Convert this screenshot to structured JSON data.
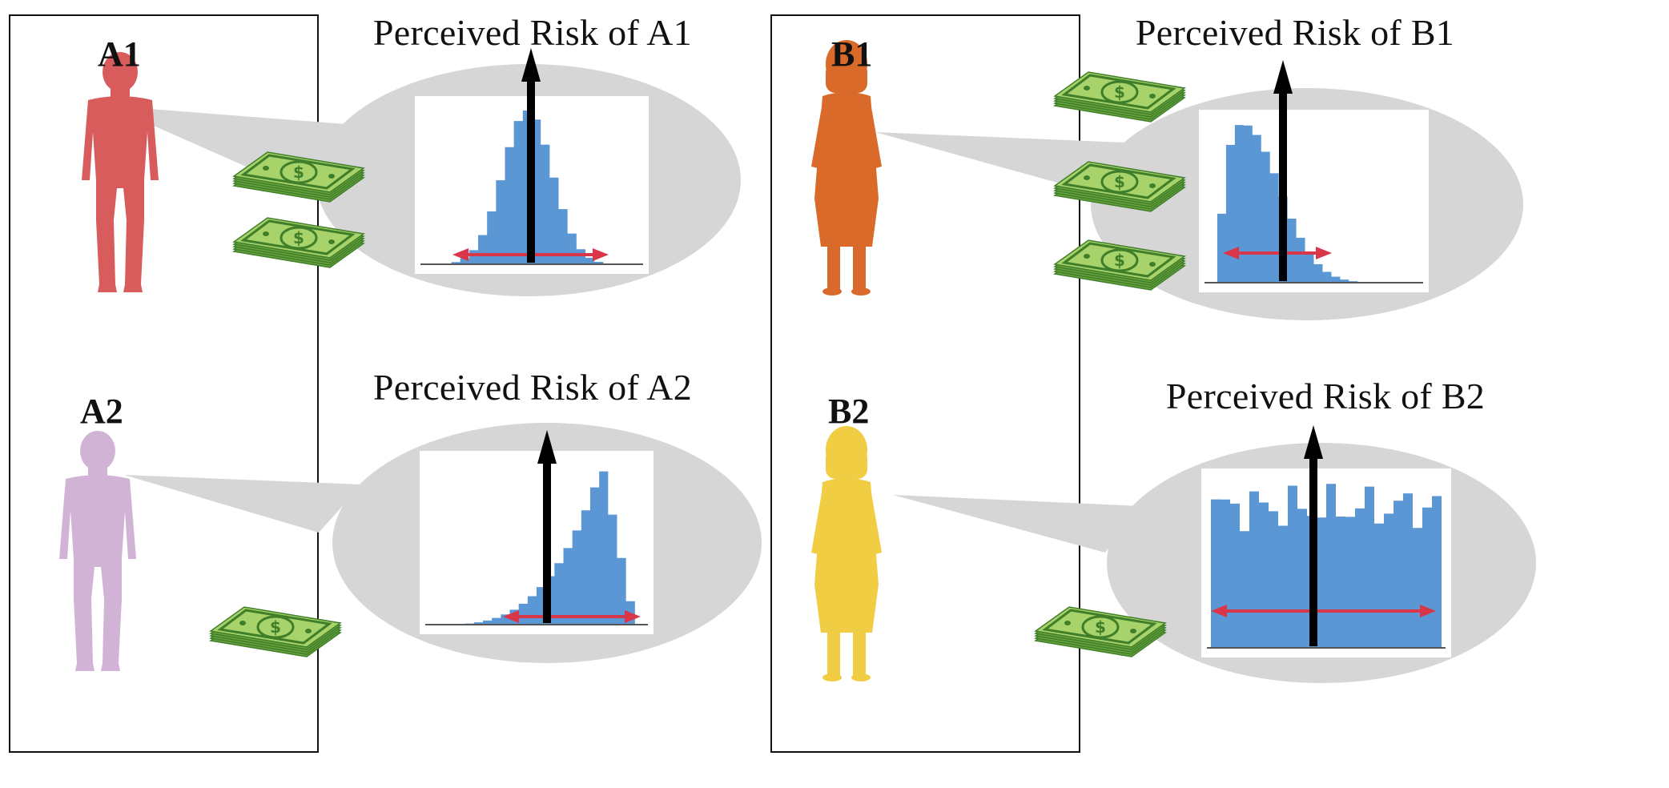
{
  "panels": [
    {
      "id": "A",
      "people": [
        {
          "label": "A1",
          "bills": 2,
          "color": "#d85c5c",
          "shape": "boy",
          "title": "Perceived Risk of A1",
          "dist": "normal"
        },
        {
          "label": "A2",
          "bills": 1,
          "color": "#d1b3d6",
          "shape": "boy",
          "title": "Perceived Risk of A2",
          "dist": "left-skewed"
        }
      ]
    },
    {
      "id": "B",
      "people": [
        {
          "label": "B1",
          "bills": 3,
          "color": "#d96a2a",
          "shape": "girl",
          "title": "Perceived Risk of B1",
          "dist": "right-skewed"
        },
        {
          "label": "B2",
          "bills": 1,
          "color": "#f1cd43",
          "shape": "girl",
          "title": "Perceived Risk of B2",
          "dist": "uniform"
        }
      ]
    }
  ],
  "colors": {
    "histogram": "#5b97d5",
    "spread_arrow": "#d9364a",
    "mean_arrow": "#000000",
    "bubble": "#d6d6d6",
    "bill_dark": "#3f7f2a",
    "bill_light": "#a8d26a"
  },
  "icons": [
    "person-silhouette-icon",
    "money-stack-icon",
    "thought-bubble",
    "histogram",
    "mean-arrow",
    "spread-arrow"
  ]
}
